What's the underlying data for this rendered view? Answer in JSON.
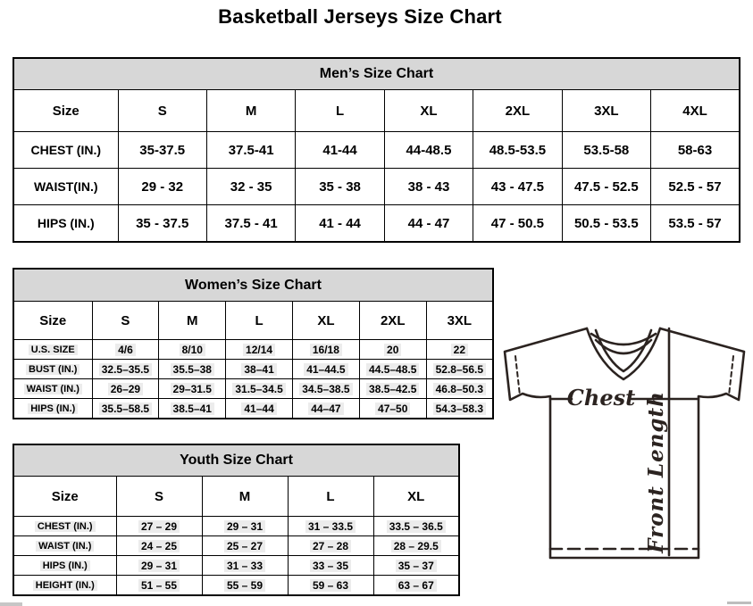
{
  "page_title": "Basketball Jerseys Size Chart",
  "tables": {
    "men": {
      "title": "Men’s Size Chart",
      "columns": [
        "Size",
        "S",
        "M",
        "L",
        "XL",
        "2XL",
        "3XL",
        "4XL"
      ],
      "rows": [
        {
          "label": "CHEST (IN.)",
          "values": [
            "35-37.5",
            "37.5-41",
            "41-44",
            "44-48.5",
            "48.5-53.5",
            "53.5-58",
            "58-63"
          ]
        },
        {
          "label": "WAIST(IN.)",
          "values": [
            "29 - 32",
            "32 - 35",
            "35 - 38",
            "38 - 43",
            "43 - 47.5",
            "47.5 - 52.5",
            "52.5 - 57"
          ]
        },
        {
          "label": "HIPS (IN.)",
          "values": [
            "35 - 37.5",
            "37.5 - 41",
            "41 - 44",
            "44 - 47",
            "47 - 50.5",
            "50.5 - 53.5",
            "53.5 - 57"
          ]
        }
      ]
    },
    "women": {
      "title": "Women’s Size Chart",
      "columns": [
        "Size",
        "S",
        "M",
        "L",
        "XL",
        "2XL",
        "3XL"
      ],
      "rows": [
        {
          "label": "U.S. SIZE",
          "values": [
            "4/6",
            "8/10",
            "12/14",
            "16/18",
            "20",
            "22"
          ]
        },
        {
          "label": "BUST (IN.)",
          "values": [
            "32.5–35.5",
            "35.5–38",
            "38–41",
            "41–44.5",
            "44.5–48.5",
            "52.8–56.5"
          ]
        },
        {
          "label": "WAIST (IN.)",
          "values": [
            "26–29",
            "29–31.5",
            "31.5–34.5",
            "34.5–38.5",
            "38.5–42.5",
            "46.8–50.3"
          ]
        },
        {
          "label": "HIPS (IN.)",
          "values": [
            "35.5–58.5",
            "38.5–41",
            "41–44",
            "44–47",
            "47–50",
            "54.3–58.3"
          ]
        }
      ]
    },
    "youth": {
      "title": "Youth Size Chart",
      "columns": [
        "Size",
        "S",
        "M",
        "L",
        "XL"
      ],
      "rows": [
        {
          "label": "CHEST (IN.)",
          "values": [
            "27 – 29",
            "29 – 31",
            "31 – 33.5",
            "33.5 – 36.5"
          ]
        },
        {
          "label": "WAIST (IN.)",
          "values": [
            "24 – 25",
            "25 – 27",
            "27 – 28",
            "28 – 29.5"
          ]
        },
        {
          "label": "HIPS (IN.)",
          "values": [
            "29 – 31",
            "31 – 33",
            "33 – 35",
            "35 – 37"
          ]
        },
        {
          "label": "HEIGHT (IN.)",
          "values": [
            "51 – 55",
            "55 – 59",
            "59 – 63",
            "63 – 67"
          ]
        }
      ]
    }
  },
  "diagram": {
    "chest_label": "Chest",
    "front_length_label": "Front Length",
    "line_color": "#2b2320"
  },
  "colors": {
    "band_background": "#d7d7d7",
    "border": "#000000",
    "value_highlight": "#ececec"
  }
}
